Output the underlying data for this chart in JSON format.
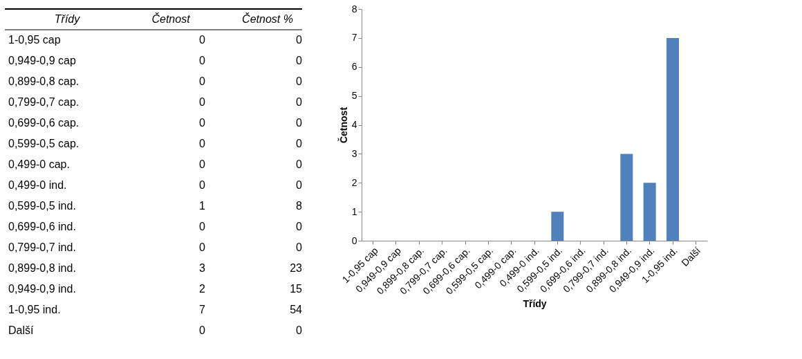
{
  "chart_data": [
    {
      "type": "other",
      "xlabel": "Třídy",
      "data_labels": true,
      "categories": [
        "1-0,95 cap",
        "0,949-0,9 cap",
        "0,899-0,8 cap.",
        "0,799-0,7 cap.",
        "0,699-0,6 cap.",
        "0,599-0,5 cap.",
        "0,499-0 cap.",
        "0,499-0 ind.",
        "0,599-0,5 ind.",
        "0,699-0,6 ind.",
        "0,799-0,7 ind.",
        "0,899-0,8 ind.",
        "0,949-0,9 ind.",
        "1-0,95 ind.",
        "Další"
      ],
      "series": [
        {
          "name": "Četnost",
          "values": [
            0,
            0,
            0,
            0,
            0,
            0,
            0,
            0,
            1,
            0,
            0,
            3,
            2,
            7,
            0
          ]
        },
        {
          "name": "Četnost %",
          "values": [
            0,
            0,
            0,
            0,
            0,
            0,
            0,
            0,
            8,
            0,
            0,
            23,
            15,
            54,
            0
          ]
        }
      ]
    },
    {
      "type": "bar",
      "xlabel": "Třídy",
      "ylabel": "Četnost",
      "color": "#4f81bd",
      "grid": false,
      "categories": [
        "1-0,95 cap",
        "0,949-0,9 cap",
        "0,899-0,8 cap.",
        "0,799-0,7 cap.",
        "0,699-0,6 cap.",
        "0,599-0,5 cap.",
        "0,499-0 cap.",
        "0,499-0 ind.",
        "0,599-0,5 ind.",
        "0,699-0,6 ind.",
        "0,799-0,7 ind.",
        "0,899-0,8 ind.",
        "0,949-0,9 ind.",
        "1-0,95 ind.",
        "Další"
      ],
      "values": [
        0,
        0,
        0,
        0,
        0,
        0,
        0,
        0,
        1,
        0,
        0,
        3,
        2,
        7,
        0
      ],
      "ylim": [
        0,
        8
      ],
      "yticks": [
        0,
        1,
        2,
        3,
        4,
        5,
        6,
        7,
        8
      ]
    }
  ]
}
